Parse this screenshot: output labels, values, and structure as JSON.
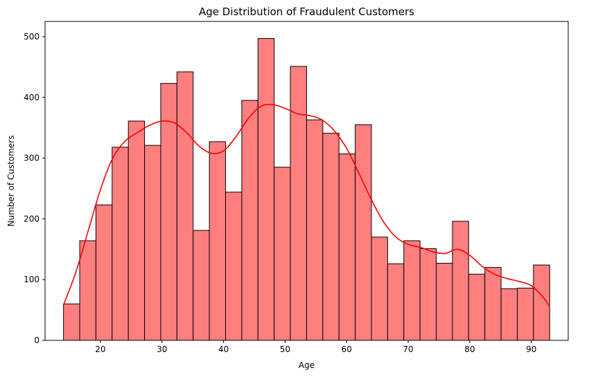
{
  "chart_data": {
    "type": "bar",
    "title": "Age Distribution of Fraudulent Customers",
    "xlabel": "Age",
    "ylabel": "Number of Customers",
    "xlim": [
      11.0,
      96.0
    ],
    "ylim": [
      0,
      525
    ],
    "xticks": [
      20,
      30,
      40,
      50,
      60,
      70,
      80,
      90
    ],
    "yticks": [
      0,
      100,
      200,
      300,
      400,
      500
    ],
    "bin_start": 14.0,
    "bin_width": 2.633,
    "values": [
      60,
      164,
      223,
      318,
      361,
      321,
      423,
      442,
      181,
      327,
      244,
      395,
      497,
      285,
      451,
      363,
      341,
      307,
      355,
      170,
      126,
      164,
      151,
      127,
      196,
      109,
      120,
      85,
      86,
      124
    ],
    "kde": {
      "x": [
        14,
        16,
        18,
        20,
        22,
        24,
        26,
        28,
        30,
        32,
        34,
        36,
        38,
        40,
        42,
        44,
        46,
        48,
        50,
        52,
        54,
        56,
        58,
        60,
        62,
        64,
        66,
        68,
        70,
        72,
        74,
        76,
        78,
        80,
        82,
        84,
        86,
        88,
        90,
        92,
        93
      ],
      "y": [
        58,
        112,
        180,
        248,
        300,
        328,
        342,
        354,
        361,
        358,
        342,
        320,
        308,
        312,
        335,
        365,
        385,
        388,
        382,
        373,
        370,
        363,
        345,
        316,
        275,
        232,
        195,
        170,
        158,
        153,
        146,
        143,
        150,
        140,
        122,
        109,
        102,
        97,
        90,
        70,
        55
      ]
    },
    "bar_color": "#ff7f7f",
    "edge_color": "#000000",
    "kde_color": "#ff0000",
    "grid": false
  }
}
